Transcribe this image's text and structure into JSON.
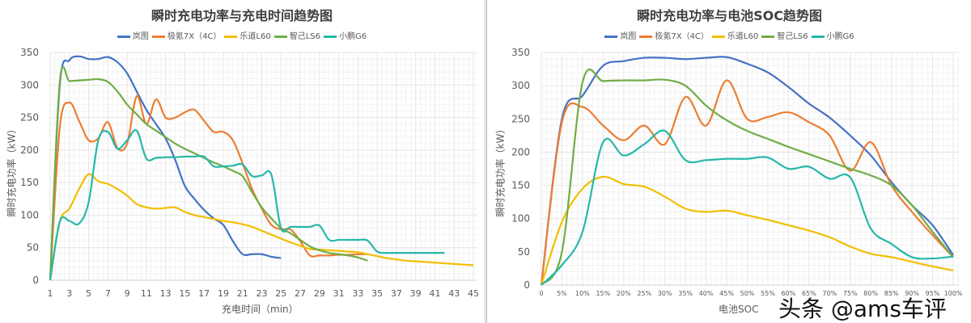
{
  "colors": {
    "岚图": "#4472C4",
    "极氪7X（4C）": "#ED7D31",
    "乐道L60": "#F2BE00",
    "智己LS6": "#70AD47",
    "小鹏G6": "#26B8A8"
  },
  "watermark": "头条 @ams车评",
  "chart_data": [
    {
      "type": "line",
      "title": "瞬时充电功率与充电时间趋势图",
      "xlabel": "充电时间（min）",
      "ylabel": "瞬时充电功率（kW）",
      "ylim": [
        0,
        350
      ],
      "yticks": [
        0,
        50,
        100,
        150,
        200,
        250,
        300,
        350
      ],
      "xlim": [
        1,
        45
      ],
      "xticks": [
        1,
        3,
        5,
        7,
        9,
        11,
        13,
        15,
        17,
        19,
        21,
        23,
        25,
        27,
        29,
        31,
        33,
        35,
        37,
        39,
        41,
        43,
        45
      ],
      "grid": true,
      "legend": "top",
      "series": [
        {
          "name": "岚图",
          "x_start": 1,
          "values": [
            0,
            300,
            338,
            344,
            340,
            340,
            343,
            335,
            318,
            290,
            262,
            240,
            218,
            185,
            145,
            125,
            108,
            95,
            85,
            60,
            40,
            40,
            40,
            36,
            34
          ]
        },
        {
          "name": "极氪7X（4C）",
          "x_start": 1,
          "values": [
            0,
            235,
            273,
            245,
            215,
            218,
            243,
            203,
            210,
            283,
            240,
            278,
            250,
            250,
            258,
            262,
            245,
            228,
            228,
            215,
            180,
            140,
            110,
            85,
            78,
            78,
            60,
            38,
            38,
            38,
            39,
            39,
            40,
            40
          ]
        },
        {
          "name": "乐道L60",
          "x_start": 1,
          "values": [
            0,
            90,
            110,
            140,
            163,
            152,
            148,
            140,
            130,
            117,
            112,
            110,
            111,
            112,
            105,
            100,
            97,
            94,
            91,
            89,
            86,
            82,
            76,
            70,
            64,
            58,
            53,
            48,
            47,
            46,
            45,
            44,
            43,
            40,
            37,
            34,
            32,
            30,
            29,
            28,
            27,
            26,
            25,
            24,
            23
          ]
        },
        {
          "name": "智己LS6",
          "x_start": 1,
          "values": [
            0,
            305,
            306,
            307,
            308,
            309,
            305,
            290,
            270,
            255,
            240,
            230,
            220,
            210,
            202,
            195,
            188,
            181,
            175,
            168,
            160,
            135,
            112,
            95,
            80,
            72,
            62,
            52,
            46,
            42,
            40,
            38,
            35,
            30
          ]
        },
        {
          "name": "小鹏G6",
          "x_start": 1,
          "values": [
            0,
            90,
            91,
            87,
            120,
            215,
            228,
            202,
            215,
            230,
            187,
            188,
            189,
            189,
            190,
            190,
            190,
            175,
            175,
            176,
            178,
            160,
            161,
            162,
            80,
            82,
            82,
            82,
            84,
            62,
            62,
            62,
            62,
            61,
            44,
            42,
            42,
            42,
            42,
            42,
            42,
            42
          ]
        }
      ]
    },
    {
      "type": "line",
      "title": "瞬时充电功率与电池SOC趋势图",
      "xlabel": "电池SOC",
      "ylabel": "瞬时充电功率（kW）",
      "ylim": [
        0,
        350
      ],
      "yticks": [
        0,
        50,
        100,
        150,
        200,
        250,
        300,
        350
      ],
      "categories": [
        "0",
        "5%",
        "10%",
        "15%",
        "20%",
        "25%",
        "30%",
        "35%",
        "40%",
        "45%",
        "50%",
        "55%",
        "60%",
        "65%",
        "70%",
        "75%",
        "80%",
        "85%",
        "90%",
        "95%",
        "100%"
      ],
      "grid": true,
      "legend": "top",
      "series": [
        {
          "name": "岚图",
          "values": [
            0,
            250,
            285,
            330,
            337,
            342,
            342,
            340,
            342,
            343,
            333,
            320,
            298,
            273,
            252,
            225,
            195,
            155,
            120,
            90,
            45
          ]
        },
        {
          "name": "极氪7X（4C）",
          "values": [
            0,
            245,
            268,
            240,
            218,
            240,
            212,
            283,
            240,
            308,
            250,
            253,
            260,
            245,
            225,
            172,
            215,
            150,
            110,
            75,
            42
          ]
        },
        {
          "name": "乐道L60",
          "values": [
            0,
            95,
            145,
            163,
            152,
            148,
            133,
            115,
            110,
            112,
            105,
            98,
            90,
            82,
            72,
            58,
            47,
            42,
            35,
            28,
            22
          ]
        },
        {
          "name": "智己LS6",
          "values": [
            0,
            50,
            305,
            307,
            308,
            308,
            309,
            300,
            270,
            248,
            232,
            220,
            208,
            197,
            186,
            175,
            165,
            150,
            120,
            80,
            42
          ]
        },
        {
          "name": "小鹏G6",
          "values": [
            0,
            30,
            80,
            215,
            195,
            212,
            232,
            188,
            188,
            190,
            190,
            192,
            175,
            178,
            160,
            162,
            85,
            62,
            42,
            40,
            43
          ]
        }
      ]
    }
  ]
}
